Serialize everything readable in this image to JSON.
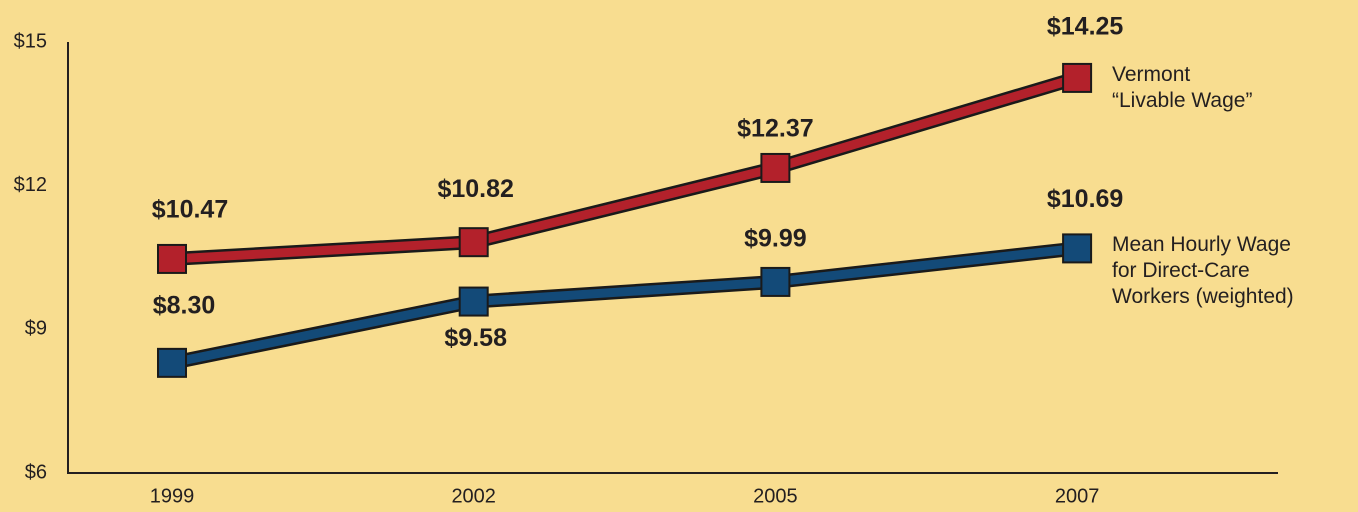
{
  "chart_data": {
    "type": "line",
    "categories": [
      "1999",
      "2002",
      "2005",
      "2007"
    ],
    "series": [
      {
        "name": "Vermont\n“Livable Wage”",
        "color": "#b3212b",
        "values": [
          10.47,
          10.82,
          12.37,
          14.25
        ],
        "value_labels": [
          "$10.47",
          "$10.82",
          "$12.37",
          "$14.25"
        ]
      },
      {
        "name": "Mean Hourly Wage\nfor Direct-Care\nWorkers (weighted)",
        "color": "#134a78",
        "values": [
          8.3,
          9.58,
          9.99,
          10.69
        ],
        "value_labels": [
          "$8.30",
          "$9.58",
          "$9.99",
          "$10.69"
        ]
      }
    ],
    "ylim": [
      6,
      15
    ],
    "yticks": [
      {
        "value": 6,
        "label": "$6"
      },
      {
        "value": 9,
        "label": "$9"
      },
      {
        "value": 12,
        "label": "$12"
      },
      {
        "value": 15,
        "label": "$15"
      }
    ]
  }
}
